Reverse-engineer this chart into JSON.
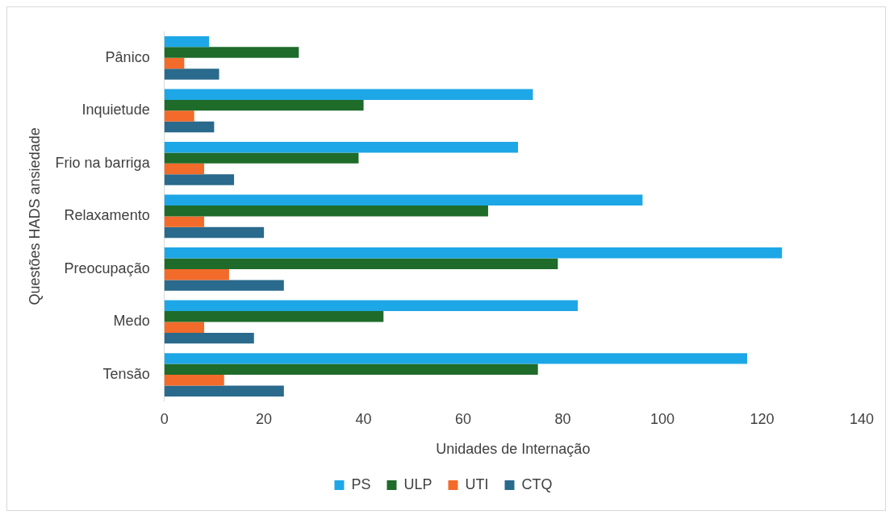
{
  "chart_data": {
    "type": "bar",
    "orientation": "horizontal",
    "xlabel": "Unidades de Internação",
    "ylabel": "Questões HADS ansiedade",
    "categories": [
      "Pânico",
      "Inquietude",
      "Frio na barriga",
      "Relaxamento",
      "Preocupação",
      "Medo",
      "Tensão"
    ],
    "series": [
      {
        "name": "PS",
        "color": "#1ea7e6",
        "values": [
          9,
          74,
          71,
          96,
          124,
          83,
          117
        ]
      },
      {
        "name": "ULP",
        "color": "#1e6b2a",
        "values": [
          27,
          40,
          39,
          65,
          79,
          44,
          75
        ]
      },
      {
        "name": "UTI",
        "color": "#f26b2a",
        "values": [
          4,
          6,
          8,
          8,
          13,
          8,
          12
        ]
      },
      {
        "name": "CTQ",
        "color": "#2a6a8c",
        "values": [
          11,
          10,
          14,
          20,
          24,
          18,
          24
        ]
      }
    ],
    "xlim": [
      0,
      140
    ],
    "xticks": [
      0,
      20,
      40,
      60,
      80,
      100,
      120,
      140
    ],
    "grid": false,
    "legend": "bottom"
  }
}
